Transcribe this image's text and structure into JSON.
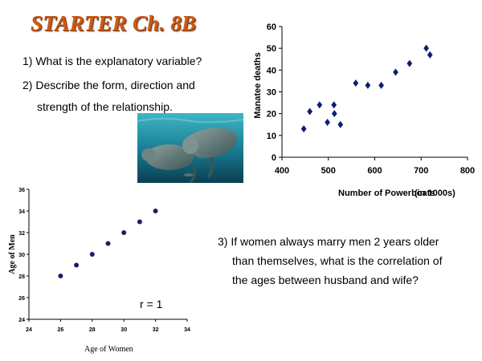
{
  "title": "STARTER Ch. 8B",
  "questions": {
    "q1": "1) What is the explanatory variable?",
    "q2_line1": "2) Describe the form, direction and",
    "q2_line2": "strength of the relationship.",
    "q3_line1": "3) If women always marry men 2 years older",
    "q3_line2": "than themselves, what is the correlation of",
    "q3_line3": "the ages between husband and wife?"
  },
  "colors": {
    "title": "#cc5a16",
    "manatee_points": "#0d1f6e",
    "age_points": "#1c1c6e"
  },
  "photo": {
    "subject": "manatee underwater"
  },
  "chart_data": [
    {
      "type": "scatter",
      "xlabel": "Number of Powerboats",
      "xlabel_unit": "(in 1000s)",
      "ylabel": "Manatee deaths",
      "xlim": [
        400,
        800
      ],
      "ylim": [
        0,
        60
      ],
      "xticks": [
        400,
        500,
        600,
        700,
        800
      ],
      "yticks": [
        0,
        10,
        20,
        30,
        40,
        50,
        60
      ],
      "marker": "diamond",
      "grid": false,
      "x": [
        447,
        460,
        481,
        498,
        512,
        513,
        526,
        559,
        585,
        614,
        645,
        675,
        711,
        719
      ],
      "y": [
        13,
        21,
        24,
        16,
        24,
        20,
        15,
        34,
        33,
        33,
        39,
        43,
        50,
        47
      ]
    },
    {
      "type": "scatter",
      "xlabel": "Age of Women",
      "ylabel": "Age of Men",
      "xlim": [
        24,
        34
      ],
      "ylim": [
        24,
        36
      ],
      "xticks": [
        24,
        26,
        28,
        30,
        32,
        34
      ],
      "yticks": [
        24,
        26,
        28,
        30,
        32,
        34,
        36
      ],
      "marker": "circle",
      "grid": false,
      "annotation": "r = 1",
      "x": [
        26,
        27,
        28,
        29,
        30,
        31,
        32
      ],
      "y": [
        28,
        29,
        30,
        31,
        32,
        33,
        34
      ]
    }
  ]
}
